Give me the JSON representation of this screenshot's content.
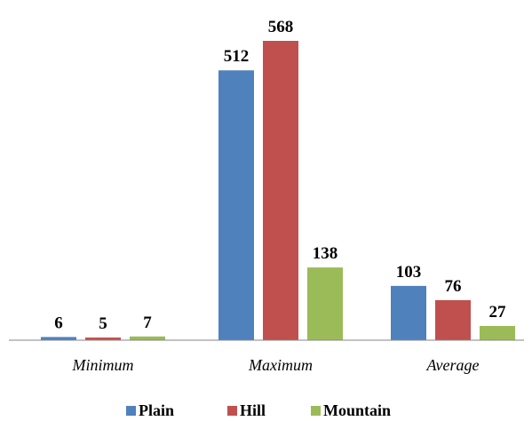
{
  "chart_data": {
    "type": "bar",
    "title": "",
    "xlabel": "",
    "ylabel": "",
    "categories": [
      "Minimum",
      "Maximum",
      "Average"
    ],
    "series": [
      {
        "name": "Plain",
        "color": "#4F81BD",
        "values": [
          6,
          512,
          103
        ]
      },
      {
        "name": "Hill",
        "color": "#C0504D",
        "values": [
          5,
          568,
          76
        ]
      },
      {
        "name": "Mountain",
        "color": "#9BBB59",
        "values": [
          7,
          138,
          27
        ]
      }
    ],
    "ylim": [
      0,
      568
    ],
    "grid": false,
    "legend_position": "bottom",
    "data_labels": true
  }
}
